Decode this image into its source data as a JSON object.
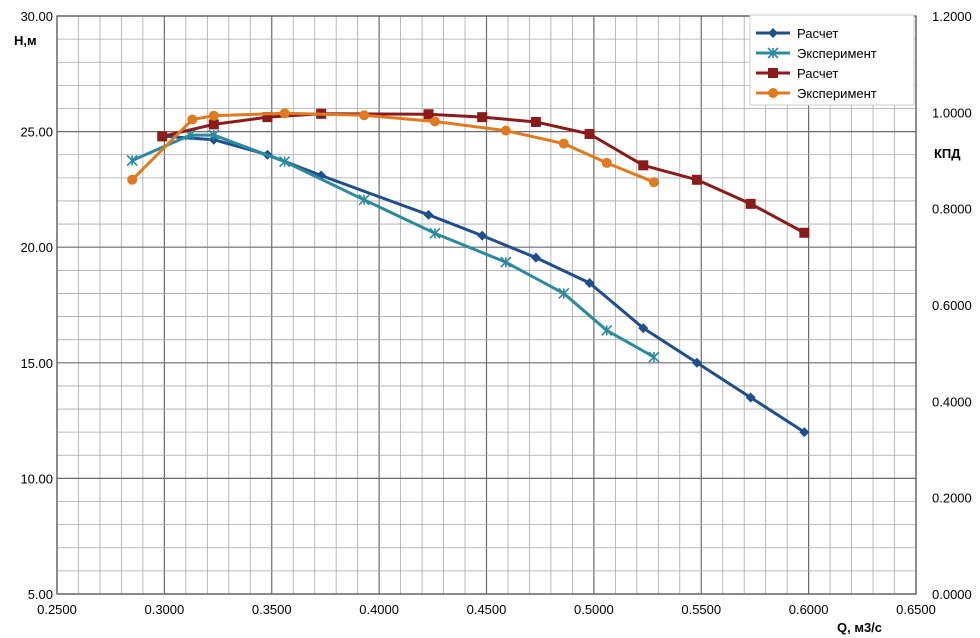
{
  "chart_data": {
    "type": "line",
    "x_axis": {
      "label": "Q, м3/с",
      "lim": [
        0.25,
        0.65
      ],
      "major_step": 0.05,
      "minor_step": 0.01,
      "tick_labels": [
        "0.2500",
        "0.3000",
        "0.3500",
        "0.4000",
        "0.4500",
        "0.5000",
        "0.5500",
        "0.6000",
        "0.6500"
      ]
    },
    "y_axis_left": {
      "label": "Н,м",
      "lim": [
        5,
        30
      ],
      "major_step": 5,
      "minor_step": 1,
      "tick_labels": [
        "5.00",
        "10.00",
        "15.00",
        "20.00",
        "25.00",
        "30.00"
      ]
    },
    "y_axis_right": {
      "label": "КПД",
      "lim": [
        0,
        1.2
      ],
      "tick_labels": [
        "0.0000",
        "0.2000",
        "0.4000",
        "0.6000",
        "0.8000",
        "1.0000",
        "1.2000"
      ]
    },
    "grid": true,
    "legend_position": "top-right",
    "series": [
      {
        "name": "Расчет",
        "axis": "left",
        "color": "#1f4e8c",
        "marker": "diamond",
        "x": [
          0.3,
          0.323,
          0.348,
          0.373,
          0.423,
          0.448,
          0.473,
          0.498,
          0.523,
          0.548,
          0.573,
          0.598
        ],
        "y": [
          24.8,
          24.65,
          24.0,
          23.1,
          21.4,
          20.5,
          19.55,
          18.45,
          16.5,
          15.0,
          13.5,
          12.0
        ]
      },
      {
        "name": "Эксперимент",
        "axis": "left",
        "color": "#2b8a9e",
        "marker": "star",
        "x": [
          0.285,
          0.312,
          0.323,
          0.356,
          0.393,
          0.426,
          0.459,
          0.486,
          0.506,
          0.528
        ],
        "y": [
          23.75,
          24.85,
          24.85,
          23.7,
          22.05,
          20.6,
          19.35,
          18.0,
          16.4,
          15.25
        ]
      },
      {
        "name": "Расчет",
        "axis": "right",
        "color": "#8b1a1a",
        "marker": "square",
        "x": [
          0.299,
          0.323,
          0.348,
          0.373,
          0.423,
          0.448,
          0.473,
          0.498,
          0.523,
          0.548,
          0.573,
          0.598
        ],
        "y": [
          0.95,
          0.975,
          0.99,
          0.997,
          0.996,
          0.99,
          0.98,
          0.955,
          0.89,
          0.86,
          0.81,
          0.75
        ]
      },
      {
        "name": "Эксперимент",
        "axis": "right",
        "color": "#e07a1f",
        "marker": "circle",
        "x": [
          0.285,
          0.313,
          0.323,
          0.356,
          0.393,
          0.426,
          0.459,
          0.486,
          0.506,
          0.528
        ],
        "y": [
          0.86,
          0.985,
          0.993,
          0.998,
          0.994,
          0.981,
          0.962,
          0.935,
          0.895,
          0.855
        ]
      }
    ]
  }
}
